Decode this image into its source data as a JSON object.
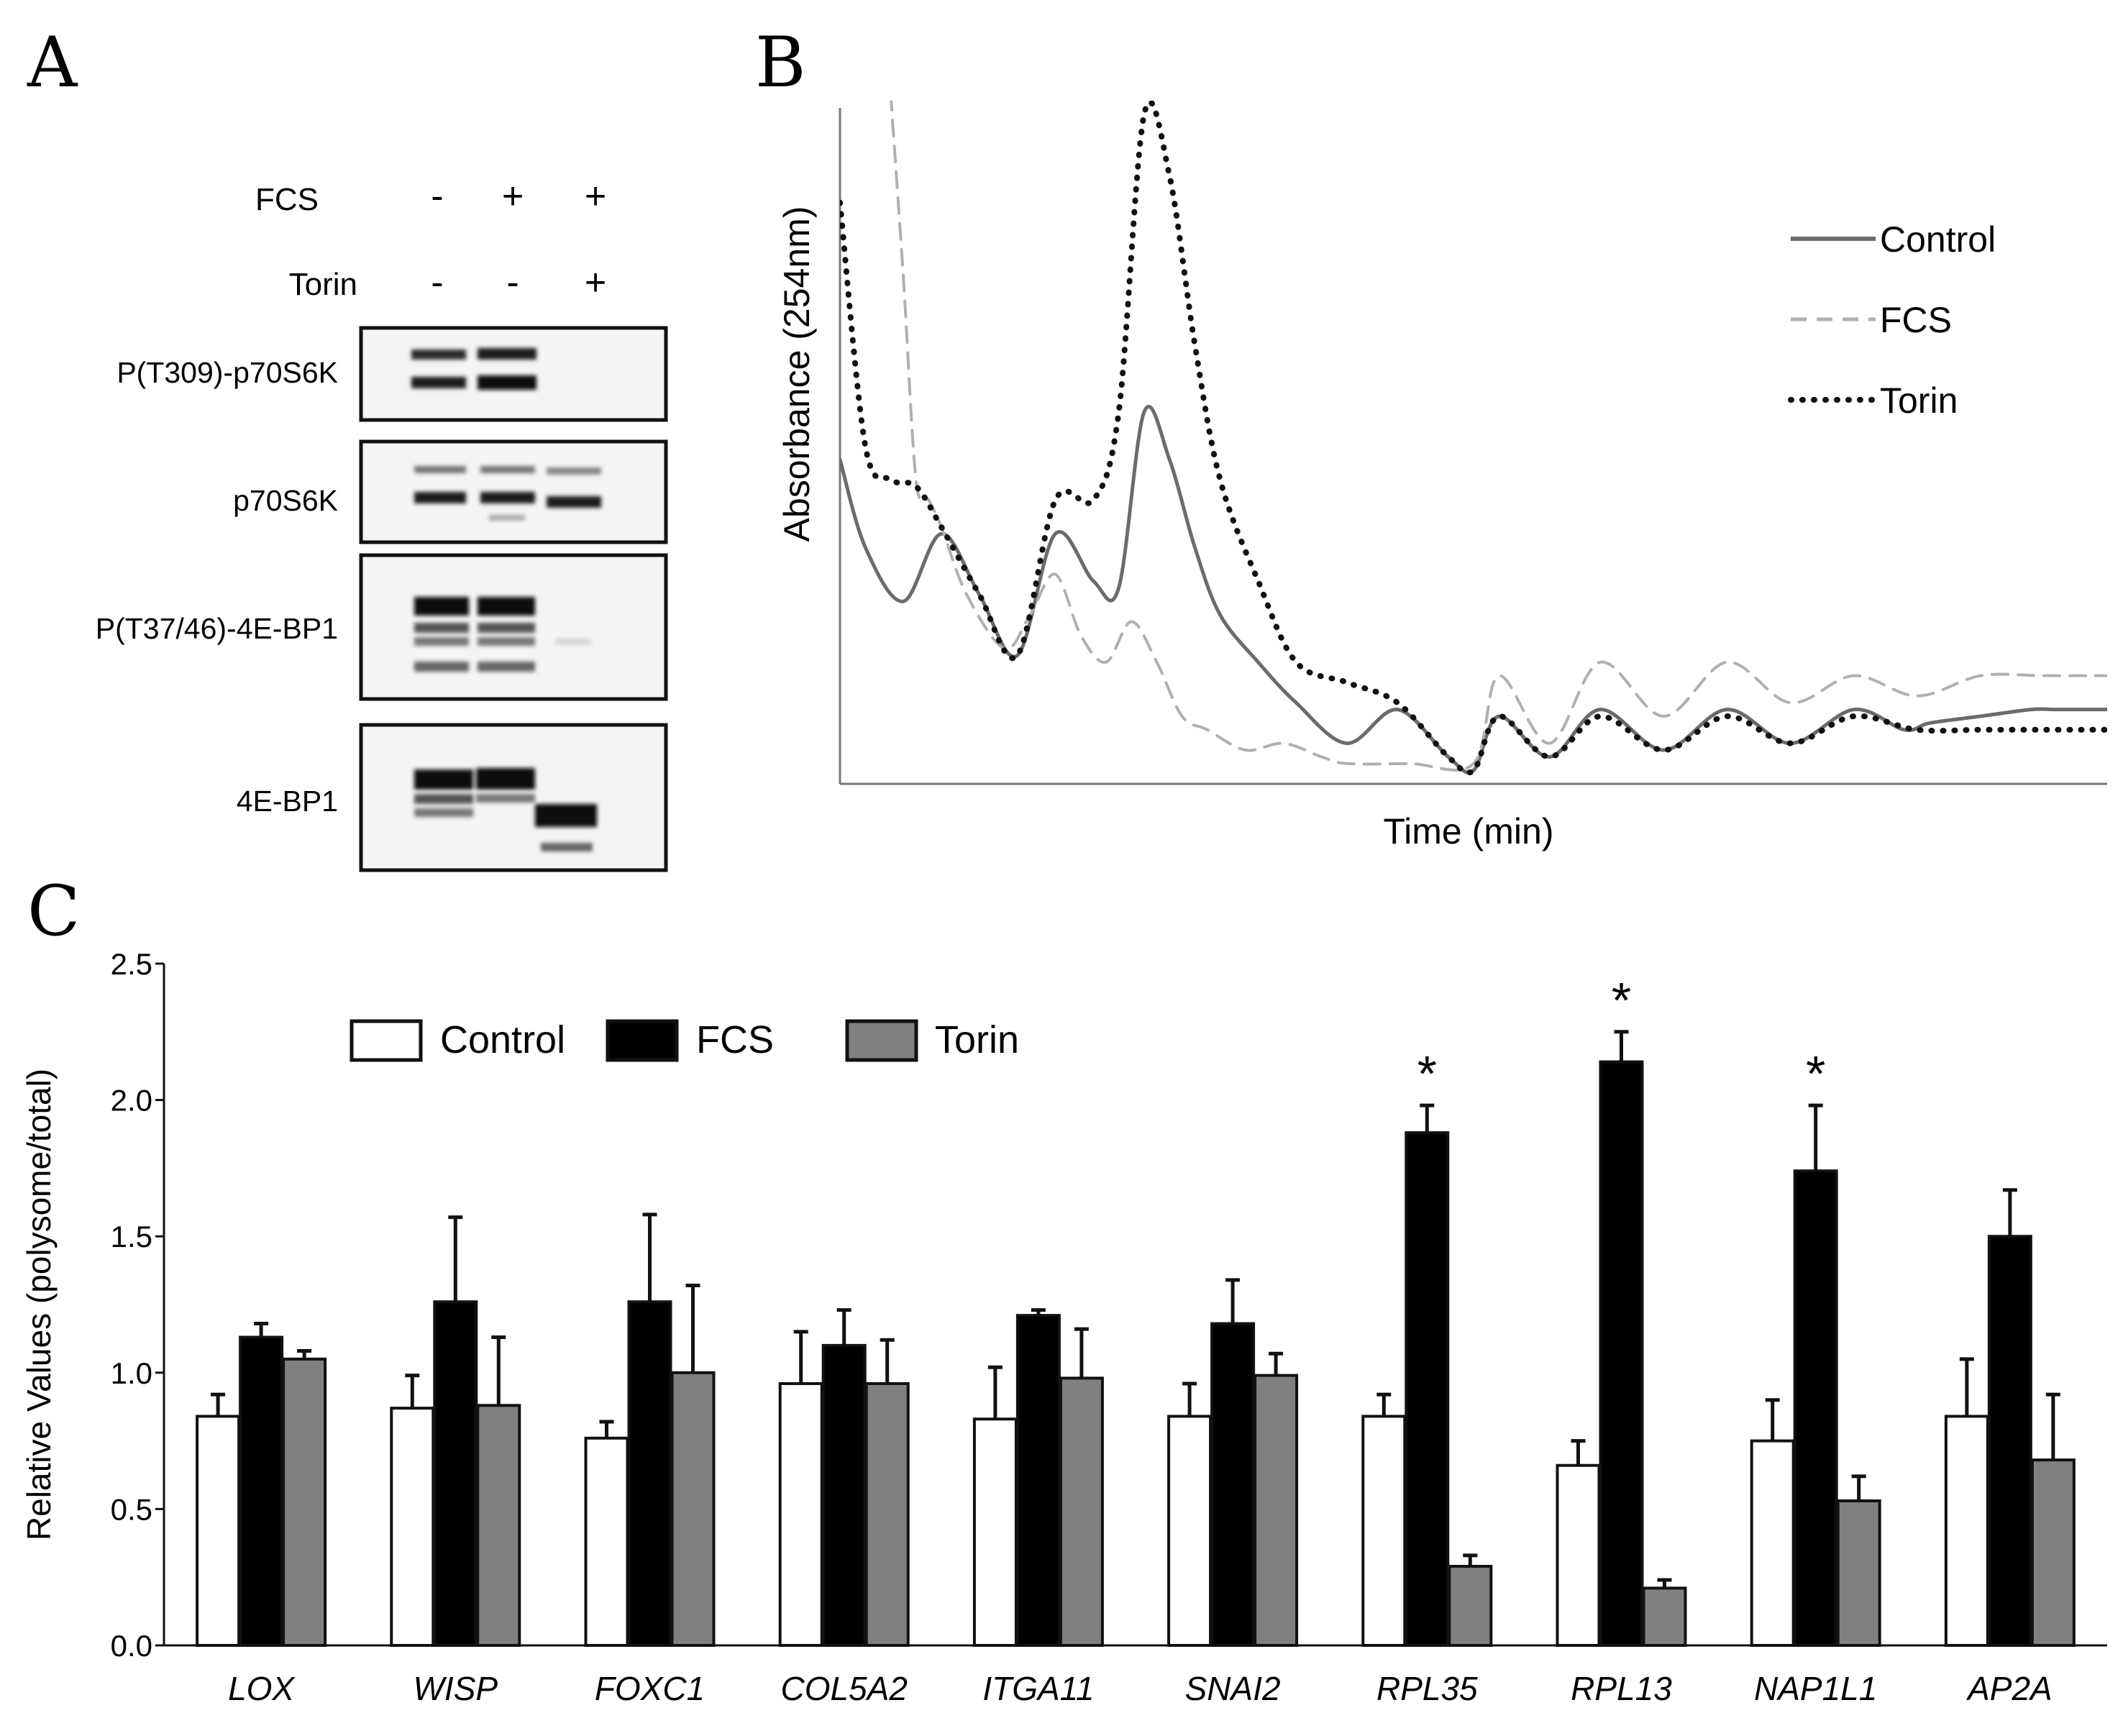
{
  "panels": {
    "a": {
      "letter": "A",
      "conditions": [
        {
          "label": "FCS",
          "marks": [
            "-",
            "+",
            "+"
          ]
        },
        {
          "label": "Torin",
          "marks": [
            "-",
            "-",
            "+"
          ]
        }
      ],
      "blots": [
        "P(T309)-p70S6K",
        "p70S6K",
        "P(T37/46)-4E-BP1",
        "4E-BP1"
      ]
    },
    "b": {
      "letter": "B"
    },
    "c": {
      "letter": "C"
    }
  },
  "chart_data": [
    {
      "type": "line",
      "panel": "B",
      "xlabel": "Time (min)",
      "ylabel": "Absorbance (254nm)",
      "xlim": [
        0,
        100
      ],
      "ylim": [
        0,
        100
      ],
      "legend_position": "top-right",
      "series": [
        {
          "name": "Control",
          "style": "solid",
          "color": "#6b6b6b",
          "x": [
            0,
            2,
            5,
            8,
            11,
            14,
            17,
            20,
            22,
            24,
            26,
            28,
            30,
            33,
            36,
            40,
            44,
            48,
            50,
            52,
            56,
            60,
            65,
            70,
            75,
            80,
            84,
            86,
            90,
            94,
            96,
            100
          ],
          "y": [
            48,
            35,
            27,
            37,
            28,
            19,
            37,
            30,
            29,
            55,
            48,
            35,
            25,
            18,
            12,
            6,
            11,
            4,
            2,
            10,
            4,
            11,
            5,
            11,
            6,
            11,
            8,
            9,
            10,
            11,
            11,
            11
          ]
        },
        {
          "name": "FCS",
          "style": "dashed",
          "color": "#b0b0b0",
          "x": [
            4,
            5,
            6,
            7,
            8,
            10,
            13,
            15,
            17,
            19,
            21,
            23,
            25,
            27,
            29,
            32,
            35,
            38,
            40,
            45,
            50,
            52,
            56,
            60,
            65,
            70,
            75,
            80,
            85,
            90,
            95,
            100
          ],
          "y": [
            102,
            75,
            45,
            42,
            38,
            28,
            20,
            25,
            31,
            22,
            18,
            24,
            18,
            10,
            8,
            5,
            6,
            4,
            3,
            3,
            3,
            16,
            6,
            18,
            10,
            18,
            12,
            16,
            13,
            16,
            16,
            16
          ]
        },
        {
          "name": "Torin",
          "style": "dotted",
          "color": "#111111",
          "x": [
            0,
            2,
            4,
            6,
            8,
            11,
            14,
            17,
            20,
            22,
            24,
            26,
            28,
            30,
            33,
            36,
            40,
            44,
            48,
            50,
            52,
            56,
            60,
            65,
            70,
            75,
            80,
            85,
            90,
            95,
            100
          ],
          "y": [
            86,
            50,
            45,
            44,
            38,
            28,
            19,
            42,
            42,
            55,
            99,
            90,
            65,
            45,
            30,
            18,
            15,
            12,
            4,
            2,
            10,
            4,
            10,
            5,
            10,
            6,
            10,
            8,
            8,
            8,
            8
          ]
        }
      ]
    },
    {
      "type": "bar",
      "panel": "C",
      "ylabel": "Relative Values (polysome/total)",
      "ylim": [
        0,
        2.5
      ],
      "yticks": [
        "0.0",
        "0.5",
        "1.0",
        "1.5",
        "2.0",
        "2.5"
      ],
      "legend_position": "top-left",
      "categories": [
        "LOX",
        "WISP",
        "FOXC1",
        "COL5A2",
        "ITGA11",
        "SNAI2",
        "RPL35",
        "RPL13",
        "NAP1L1",
        "AP2A"
      ],
      "series": [
        {
          "name": "Control",
          "color": "#ffffff",
          "values": [
            0.84,
            0.87,
            0.76,
            0.96,
            0.83,
            0.84,
            0.84,
            0.66,
            0.75,
            0.84
          ],
          "errors": [
            0.08,
            0.12,
            0.06,
            0.19,
            0.19,
            0.12,
            0.08,
            0.09,
            0.15,
            0.21
          ]
        },
        {
          "name": "FCS",
          "color": "#000000",
          "values": [
            1.13,
            1.26,
            1.26,
            1.1,
            1.21,
            1.18,
            1.88,
            2.14,
            1.74,
            1.5
          ],
          "errors": [
            0.05,
            0.31,
            0.32,
            0.13,
            0.02,
            0.16,
            0.1,
            0.11,
            0.24,
            0.17
          ]
        },
        {
          "name": "Torin",
          "color": "#808080",
          "values": [
            1.05,
            0.88,
            1.0,
            0.96,
            0.98,
            0.99,
            0.29,
            0.21,
            0.53,
            0.68
          ],
          "errors": [
            0.03,
            0.25,
            0.32,
            0.16,
            0.18,
            0.08,
            0.04,
            0.03,
            0.09,
            0.24
          ]
        }
      ],
      "annotations": [
        {
          "category": "RPL35",
          "series": "FCS",
          "text": "*"
        },
        {
          "category": "RPL13",
          "series": "FCS",
          "text": "*"
        },
        {
          "category": "NAP1L1",
          "series": "FCS",
          "text": "*"
        }
      ]
    }
  ]
}
